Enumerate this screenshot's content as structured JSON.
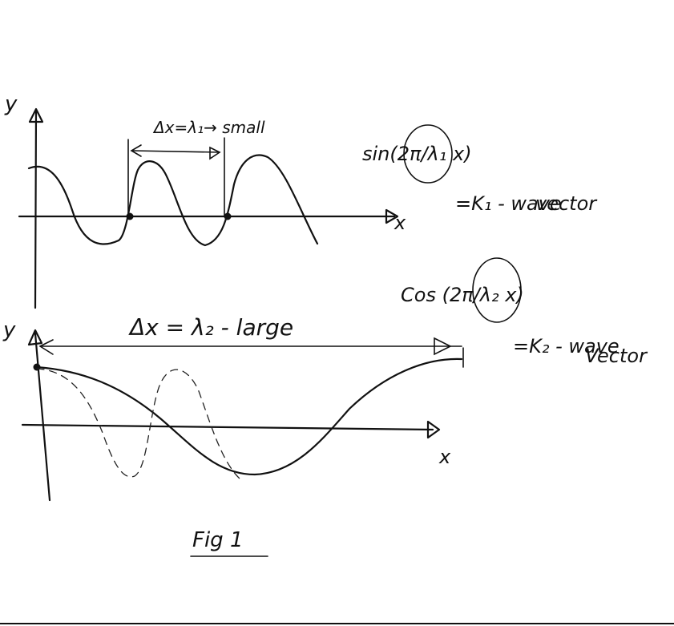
{
  "top_plot": {
    "y_label": "y",
    "x_label": "x",
    "delta_label": "Δx=λ₁→ small",
    "formula": "sin(2π/λ₁ x)",
    "k_label": "=K₁ - wave",
    "k_label_2": "vector"
  },
  "bottom_plot": {
    "y_label": "y",
    "x_label": "x",
    "delta_label": "Δx = λ₂ - large",
    "formula": "Cos (2π/λ₂ x)",
    "k_label": "=K₂ - wave",
    "k_label_2": "Vector"
  },
  "caption": "Fig 1"
}
